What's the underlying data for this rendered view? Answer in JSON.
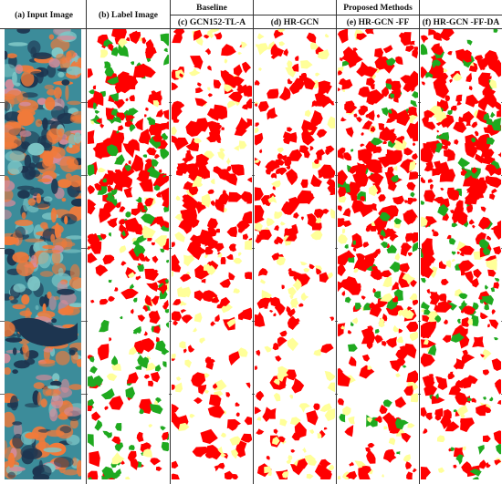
{
  "figure": {
    "header_groups": {
      "baseline": "Baseline",
      "proposed": "Proposed Methods"
    },
    "columns": [
      {
        "label": "(a)  Input Image",
        "kind": "satellite"
      },
      {
        "label": "(b)  Label Image",
        "kind": "map",
        "seed": 11,
        "red": 0.45,
        "green": 0.25,
        "yellow": 0.05
      },
      {
        "label": "(c)  GCN152-TL-A",
        "kind": "map",
        "seed": 23,
        "red": 0.4,
        "green": 0.0,
        "yellow": 0.15
      },
      {
        "label": "(d)  HR-GCN",
        "kind": "map",
        "seed": 37,
        "red": 0.42,
        "green": 0.0,
        "yellow": 0.14
      },
      {
        "label": "(e)  HR-GCN -FF",
        "kind": "map",
        "seed": 51,
        "red": 0.6,
        "green": 0.12,
        "yellow": 0.08
      },
      {
        "label": "(f)  HR-GCN -FF-DA",
        "kind": "map",
        "seed": 67,
        "red": 0.66,
        "green": 0.13,
        "yellow": 0.07
      }
    ],
    "rows": 5,
    "colors": {
      "red": "#ff0000",
      "green": "#1fa91f",
      "yellow": "#ffff99",
      "background": "#ffffff",
      "sat_orange": "#f07a3a",
      "sat_teal": "#3c8c9a",
      "sat_dark": "#1d3550",
      "sat_cyan": "#7ec7c7",
      "sat_pink": "#d58b9a"
    }
  }
}
